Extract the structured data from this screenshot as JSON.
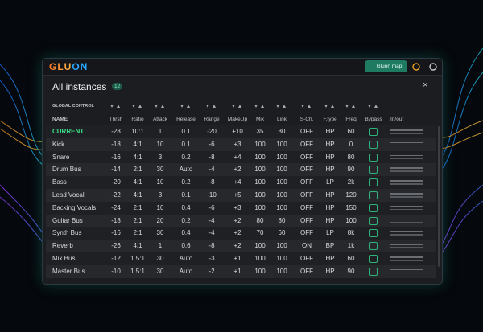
{
  "header": {
    "logo": "GLUON",
    "button": "Gluon map"
  },
  "panel": {
    "title": "All instances",
    "count": "12",
    "global_control": "GLOBAL CONTROL"
  },
  "table": {
    "columns": [
      "NAME",
      "Thrsh",
      "Ratio",
      "Attack",
      "Release",
      "Range",
      "MakeUp",
      "Mix",
      "Link",
      "S-Ch.",
      "F.type",
      "Freq",
      "Bypass",
      "In/out"
    ],
    "rows": [
      [
        "CURRENT",
        "-28",
        "10:1",
        "1",
        "0.1",
        "-20",
        "+10",
        "35",
        "80",
        "OFF",
        "HP",
        "60"
      ],
      [
        "Kick",
        "-18",
        "4:1",
        "10",
        "0.1",
        "-6",
        "+3",
        "100",
        "100",
        "OFF",
        "HP",
        "0"
      ],
      [
        "Snare",
        "-16",
        "4:1",
        "3",
        "0.2",
        "-8",
        "+4",
        "100",
        "100",
        "OFF",
        "HP",
        "80"
      ],
      [
        "Drum Bus",
        "-14",
        "2:1",
        "30",
        "Auto",
        "-4",
        "+2",
        "100",
        "100",
        "OFF",
        "HP",
        "90"
      ],
      [
        "Bass",
        "-20",
        "4:1",
        "10",
        "0.2",
        "-8",
        "+4",
        "100",
        "100",
        "OFF",
        "LP",
        "2k"
      ],
      [
        "Lead Vocal",
        "-22",
        "4:1",
        "3",
        "0.1",
        "-10",
        "+5",
        "100",
        "100",
        "OFF",
        "HP",
        "120"
      ],
      [
        "Backing Vocals",
        "-24",
        "2:1",
        "10",
        "0.4",
        "-6",
        "+3",
        "100",
        "100",
        "OFF",
        "HP",
        "150"
      ],
      [
        "Guitar Bus",
        "-18",
        "2:1",
        "20",
        "0.2",
        "-4",
        "+2",
        "80",
        "80",
        "OFF",
        "HP",
        "100"
      ],
      [
        "Synth Bus",
        "-16",
        "2:1",
        "30",
        "0.4",
        "-4",
        "+2",
        "70",
        "60",
        "OFF",
        "LP",
        "8k"
      ],
      [
        "Reverb",
        "-26",
        "4:1",
        "1",
        "0.6",
        "-8",
        "+2",
        "100",
        "100",
        "ON",
        "BP",
        "1k"
      ],
      [
        "Mix Bus",
        "-12",
        "1.5:1",
        "30",
        "Auto",
        "-3",
        "+1",
        "100",
        "100",
        "OFF",
        "HP",
        "60"
      ],
      [
        "Master Bus",
        "-10",
        "1.5:1",
        "30",
        "Auto",
        "-2",
        "+1",
        "100",
        "100",
        "OFF",
        "HP",
        "90"
      ]
    ]
  }
}
